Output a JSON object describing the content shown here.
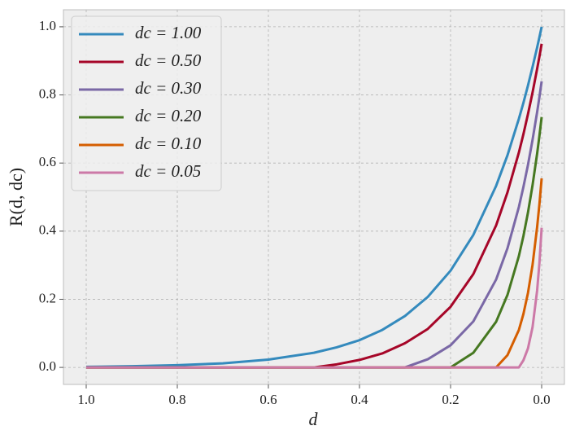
{
  "chart_data": {
    "type": "line",
    "xlabel": "d",
    "ylabel": "R(d, dc)",
    "x": [
      1.0,
      0.9,
      0.8,
      0.7,
      0.6,
      0.5,
      0.45,
      0.4,
      0.35,
      0.3,
      0.25,
      0.2,
      0.15,
      0.1,
      0.075,
      0.05,
      0.04,
      0.03,
      0.02,
      0.01,
      0.005,
      0.0
    ],
    "series": [
      {
        "name": "dc = 1.00",
        "color": "#348abd",
        "values": [
          0.0018,
          0.0034,
          0.0065,
          0.012,
          0.023,
          0.043,
          0.059,
          0.08,
          0.11,
          0.151,
          0.207,
          0.284,
          0.389,
          0.533,
          0.623,
          0.73,
          0.777,
          0.828,
          0.882,
          0.939,
          0.969,
          1.0
        ]
      },
      {
        "name": "dc = 0.50",
        "color": "#a60628",
        "values": [
          0,
          0,
          0,
          0,
          0,
          0,
          0.009,
          0.022,
          0.041,
          0.071,
          0.113,
          0.178,
          0.274,
          0.417,
          0.514,
          0.631,
          0.685,
          0.744,
          0.807,
          0.876,
          0.912,
          0.95
        ]
      },
      {
        "name": "dc = 0.30",
        "color": "#7a68a6",
        "values": [
          0,
          0,
          0,
          0,
          0,
          0,
          0,
          0,
          0,
          0,
          0.024,
          0.065,
          0.135,
          0.258,
          0.35,
          0.471,
          0.53,
          0.595,
          0.668,
          0.749,
          0.793,
          0.84
        ]
      },
      {
        "name": "dc = 0.20",
        "color": "#467821",
        "values": [
          0,
          0,
          0,
          0,
          0,
          0,
          0,
          0,
          0,
          0,
          0,
          0,
          0.043,
          0.134,
          0.213,
          0.327,
          0.386,
          0.455,
          0.535,
          0.627,
          0.679,
          0.735
        ]
      },
      {
        "name": "dc = 0.10",
        "color": "#d55e00",
        "values": [
          0,
          0,
          0,
          0,
          0,
          0,
          0,
          0,
          0,
          0,
          0,
          0,
          0,
          0,
          0.036,
          0.11,
          0.157,
          0.219,
          0.301,
          0.411,
          0.478,
          0.555
        ]
      },
      {
        "name": "dc = 0.05",
        "color": "#cc79a7",
        "values": [
          0,
          0,
          0,
          0,
          0,
          0,
          0,
          0,
          0,
          0,
          0,
          0,
          0,
          0,
          0,
          0,
          0.021,
          0.056,
          0.118,
          0.225,
          0.305,
          0.41
        ]
      }
    ],
    "xlim": [
      1.05,
      -0.05
    ],
    "xticks": [
      {
        "value": 1.0,
        "label": "1.0"
      },
      {
        "value": 0.8,
        "label": "0.8"
      },
      {
        "value": 0.6,
        "label": "0.6"
      },
      {
        "value": 0.4,
        "label": "0.4"
      },
      {
        "value": 0.2,
        "label": "0.2"
      },
      {
        "value": 0.0,
        "label": "0.0"
      }
    ],
    "ylim": [
      -0.05,
      1.05
    ],
    "yticks": [
      {
        "value": 0.0,
        "label": "0.0"
      },
      {
        "value": 0.2,
        "label": "0.2"
      },
      {
        "value": 0.4,
        "label": "0.4"
      },
      {
        "value": 0.6,
        "label": "0.6"
      },
      {
        "value": 0.8,
        "label": "0.8"
      },
      {
        "value": 1.0,
        "label": "1.0"
      }
    ],
    "grid": true,
    "legend": "upper left"
  }
}
